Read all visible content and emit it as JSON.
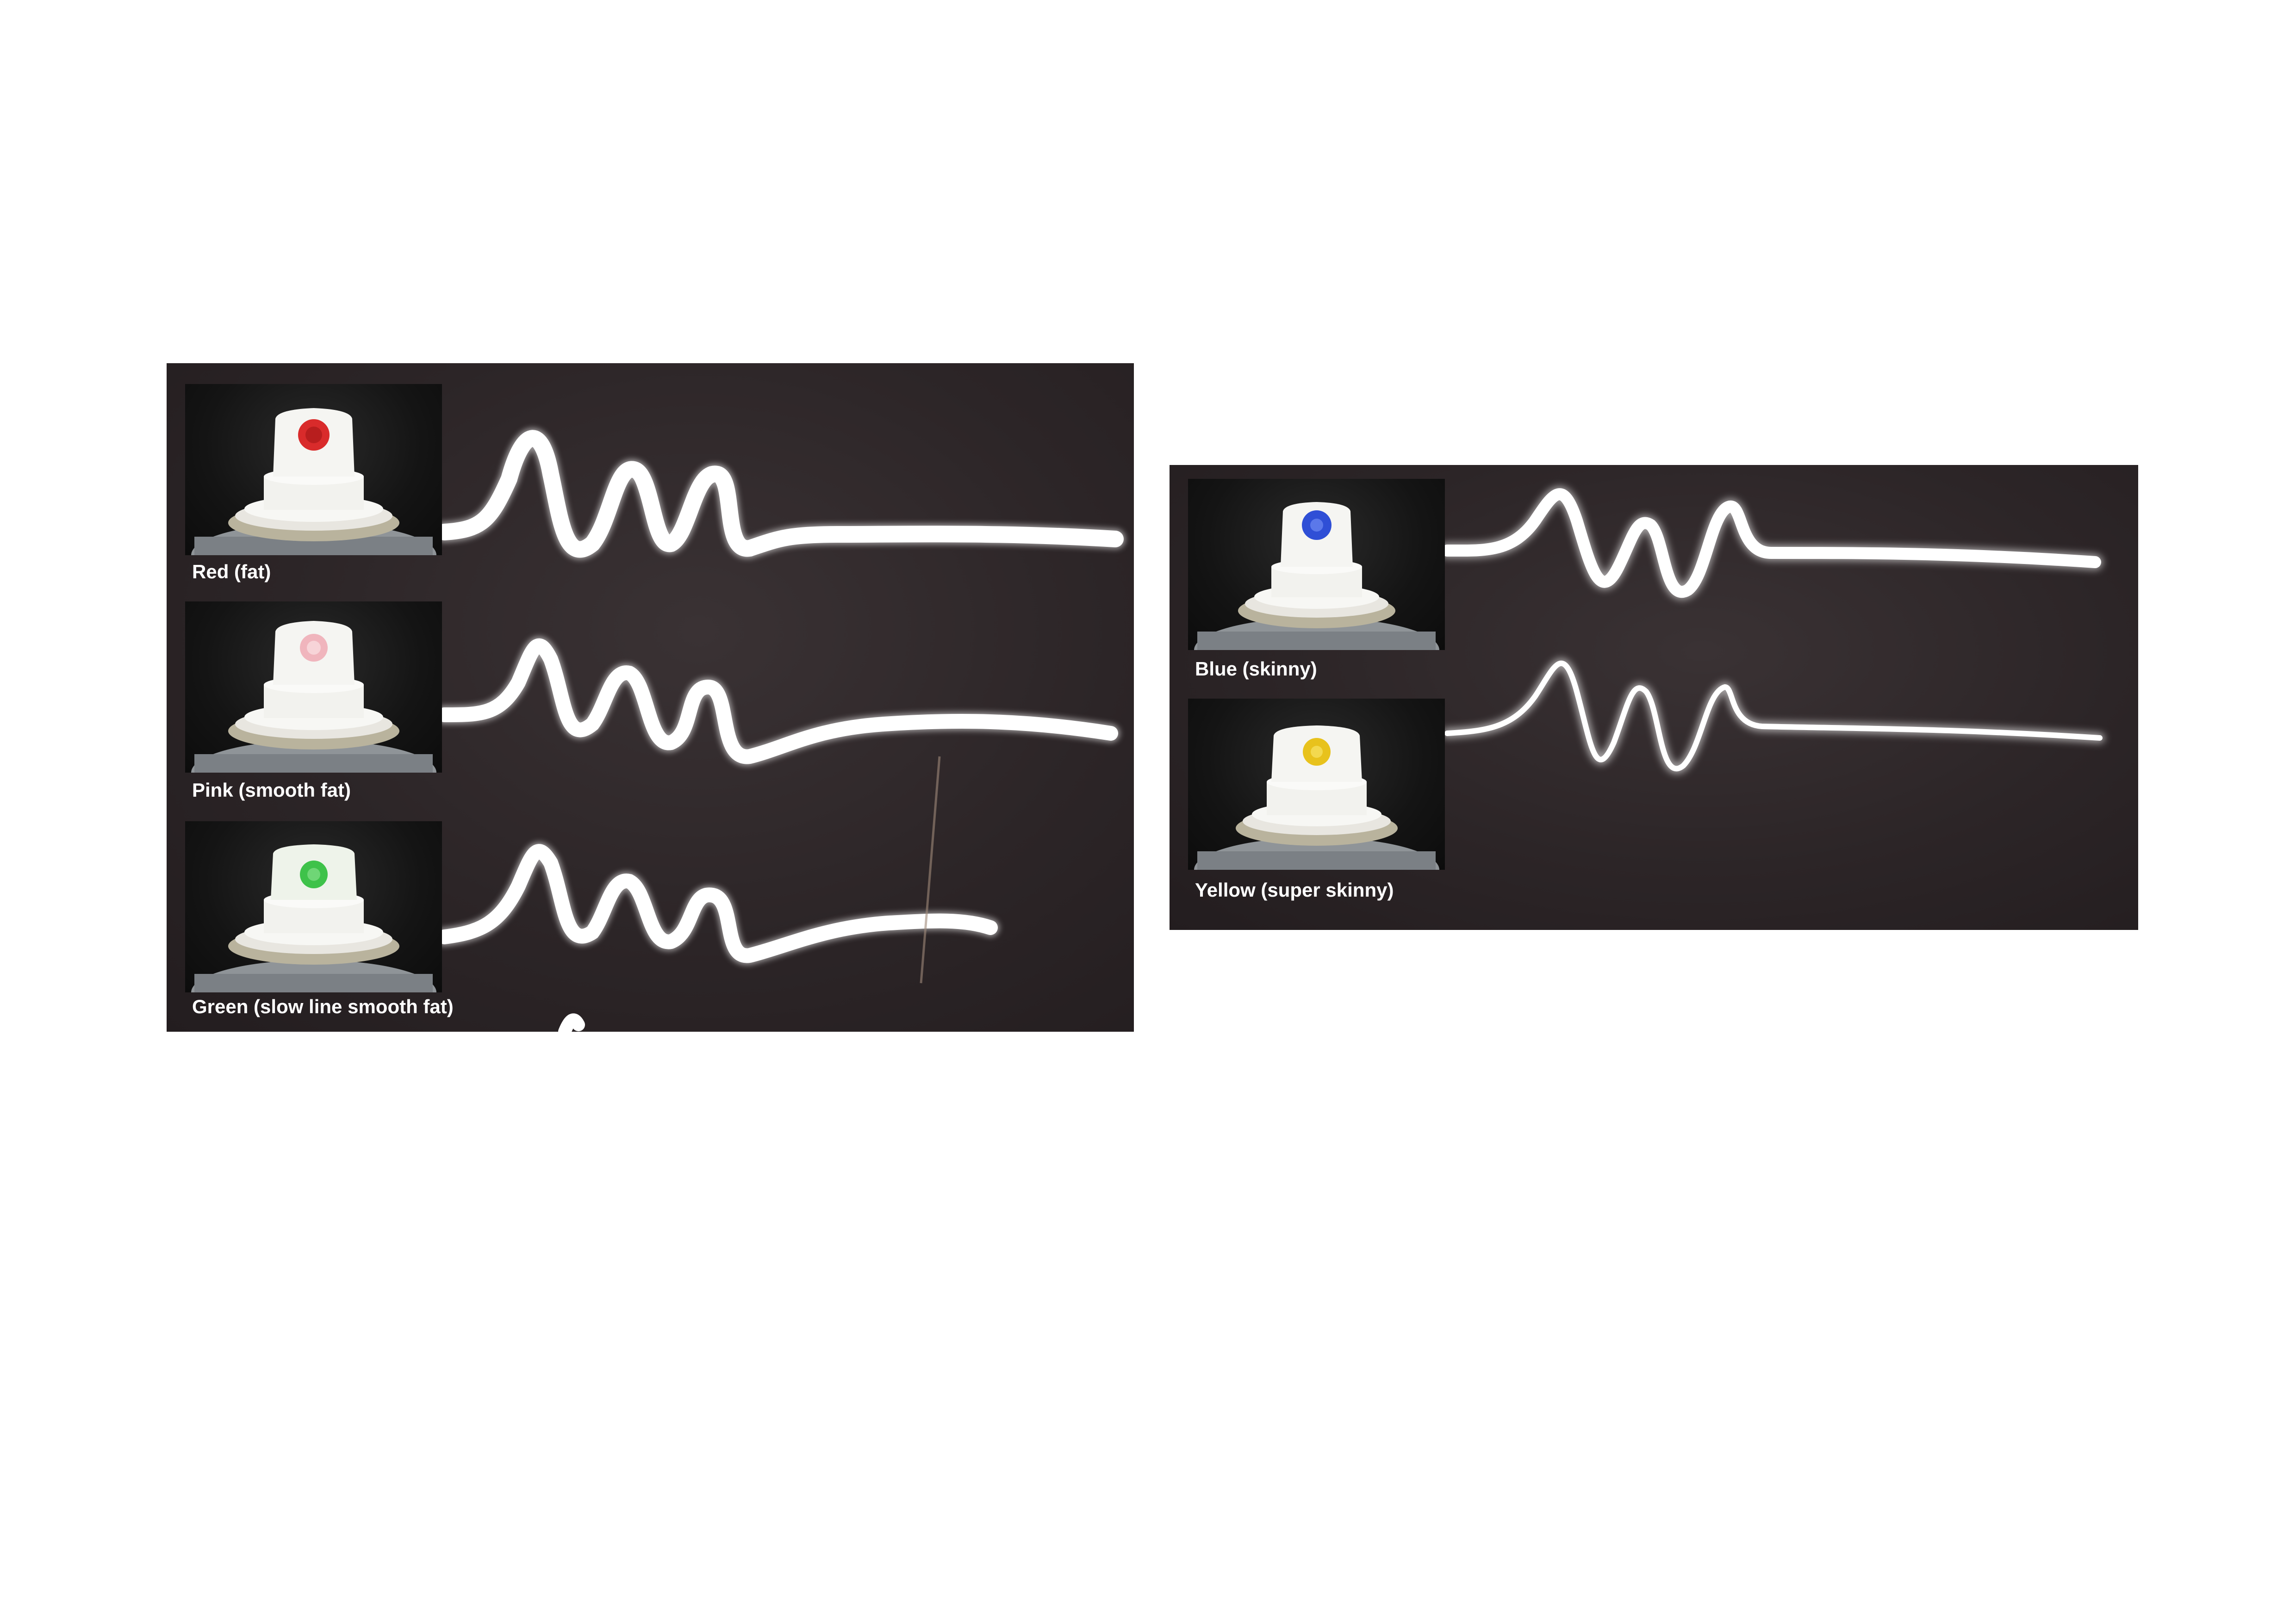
{
  "left_panel": {
    "caps": [
      {
        "label": "Red (fat)",
        "dot_color": "#d92b2b",
        "icon": "red-cap-icon"
      },
      {
        "label": "Pink (smooth fat)",
        "dot_color": "#f0b5bd",
        "icon": "pink-cap-icon"
      },
      {
        "label": "Green (slow line smooth fat)",
        "dot_color": "#3ec24a",
        "icon": "green-cap-icon"
      }
    ]
  },
  "right_panel": {
    "caps": [
      {
        "label": "Blue (skinny)",
        "dot_color": "#2f4fd6",
        "icon": "blue-cap-icon"
      },
      {
        "label": "Yellow (super skinny)",
        "dot_color": "#e8c21c",
        "icon": "yellow-cap-icon"
      }
    ]
  }
}
